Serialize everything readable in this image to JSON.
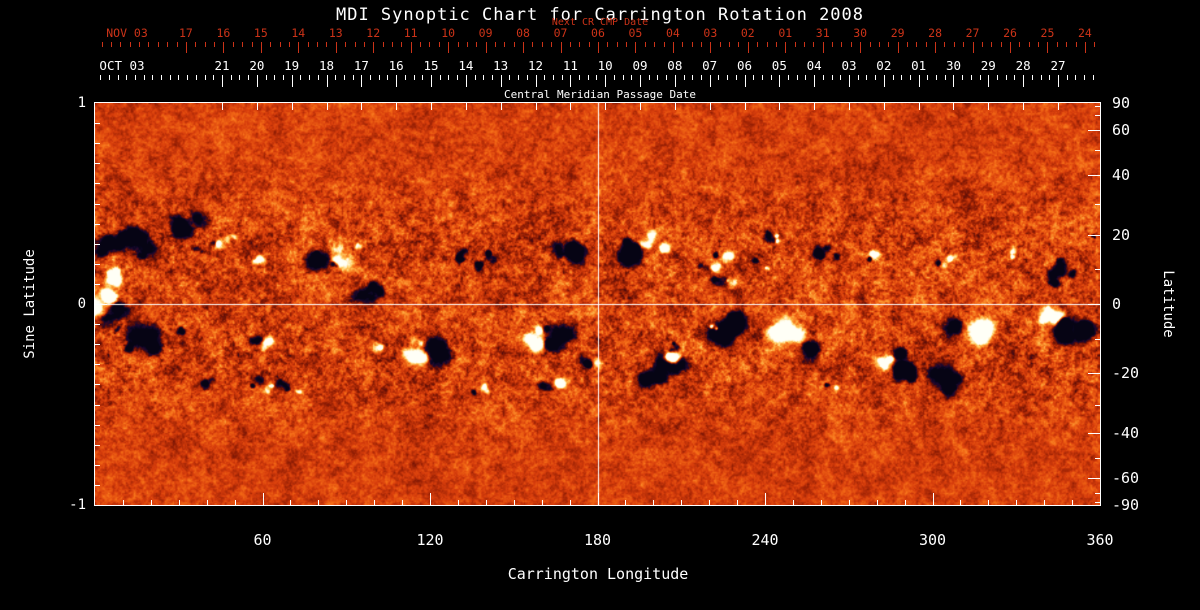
{
  "title": "MDI Synoptic Chart for Carrington Rotation 2008",
  "colors": {
    "background": "#000000",
    "foreground": "#ffffff",
    "date_red": "#cc3318",
    "map_base_orange": "#d83e0c",
    "map_negative_dark": "#0a061e",
    "map_positive_bright": "#fffff5"
  },
  "chart_data": {
    "type": "heatmap",
    "title": "MDI Synoptic Chart for Carrington Rotation 2008",
    "axes": {
      "red_top": {
        "label": "NOV 03",
        "sublabel": "Next CR CMP Date",
        "ticks": [
          "17",
          "16",
          "15",
          "14",
          "13",
          "12",
          "11",
          "10",
          "09",
          "08",
          "07",
          "06",
          "05",
          "04",
          "03",
          "02",
          "01",
          "31",
          "30",
          "29",
          "28",
          "27",
          "26",
          "25",
          "24"
        ]
      },
      "white_top": {
        "label": "OCT 03",
        "axis_title": "Central Meridian Passage Date",
        "ticks": [
          "21",
          "20",
          "19",
          "18",
          "17",
          "16",
          "15",
          "14",
          "13",
          "12",
          "11",
          "10",
          "09",
          "08",
          "07",
          "06",
          "05",
          "04",
          "03",
          "02",
          "01",
          "30",
          "29",
          "28",
          "27"
        ]
      },
      "bottom": {
        "label": "Carrington Longitude",
        "ticks": [
          60,
          120,
          180,
          240,
          300,
          360
        ],
        "range": [
          0,
          360
        ]
      },
      "left": {
        "label": "Sine Latitude",
        "ticks": [
          1,
          0,
          -1
        ],
        "range": [
          -1,
          1
        ]
      },
      "right": {
        "label": "Latitude",
        "ticks": [
          90,
          60,
          40,
          20,
          0,
          -20,
          -40,
          -60,
          -90
        ]
      }
    },
    "crosshair": {
      "carrington_longitude": 180,
      "sine_latitude": 0
    }
  }
}
